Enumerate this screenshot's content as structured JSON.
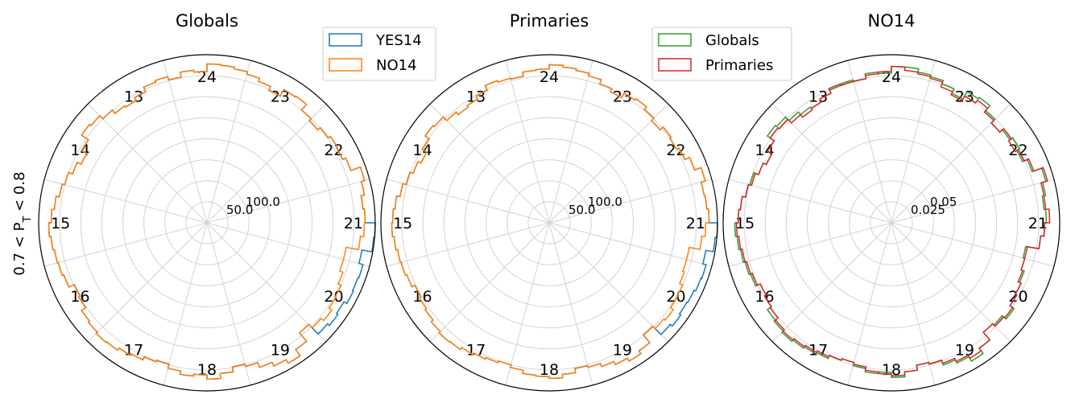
{
  "figure": {
    "ylabel": "0.7 < P_T < 0.8",
    "colors": {
      "YES14": "#1f77b4",
      "NO14": "#ff7f0e",
      "Globals": "#2ca02c",
      "Primaries": "#d62728"
    }
  },
  "chart_data": [
    {
      "type": "polar-step",
      "title": "Globals",
      "sector_labels": [
        "13",
        "24",
        "23",
        "22",
        "21",
        "20",
        "19",
        "18",
        "17",
        "16",
        "15",
        "14"
      ],
      "rticks": [
        "50.0",
        "100.0"
      ],
      "rmax": 200,
      "legend": [
        "YES14",
        "NO14"
      ],
      "bins": 72,
      "series": [
        {
          "name": "YES14",
          "color": "#1f77b4",
          "values": [
            188,
            186,
            190,
            194,
            182,
            178,
            179,
            176,
            172,
            175,
            184,
            183,
            174,
            179,
            183,
            186,
            188,
            189,
            180,
            182,
            176,
            180,
            178,
            172,
            168,
            170,
            175,
            180,
            182,
            172,
            165,
            170,
            175,
            178,
            182,
            185,
            188,
            186,
            184,
            183,
            181,
            174,
            176,
            182,
            184,
            186,
            185,
            182,
            180,
            176,
            174,
            179,
            183,
            181,
            186,
            180,
            174,
            177,
            183,
            188,
            193,
            184,
            171,
            187,
            190,
            188,
            192,
            191,
            192,
            187,
            199,
            203
          ]
        },
        {
          "name": "NO14",
          "color": "#ff7f0e",
          "values": [
            188,
            186,
            190,
            194,
            182,
            178,
            179,
            176,
            172,
            175,
            184,
            183,
            174,
            179,
            183,
            186,
            188,
            189,
            180,
            182,
            176,
            180,
            178,
            172,
            168,
            170,
            175,
            180,
            182,
            172,
            165,
            170,
            175,
            178,
            182,
            185,
            188,
            186,
            184,
            183,
            181,
            174,
            176,
            182,
            184,
            186,
            185,
            182,
            180,
            176,
            174,
            179,
            183,
            181,
            186,
            180,
            174,
            177,
            183,
            188,
            193,
            184,
            171,
            177,
            181,
            177,
            176,
            172,
            168,
            168,
            183,
            187
          ]
        }
      ]
    },
    {
      "type": "polar-step",
      "title": "Primaries",
      "sector_labels": [
        "13",
        "24",
        "23",
        "22",
        "21",
        "20",
        "19",
        "18",
        "17",
        "16",
        "15",
        "14"
      ],
      "rticks": [
        "50.0",
        "100.0"
      ],
      "rmax": 200,
      "legend": [],
      "bins": 72,
      "series": [
        {
          "name": "YES14",
          "color": "#1f77b4",
          "values": [
            190,
            188,
            187,
            192,
            184,
            178,
            175,
            177,
            172,
            176,
            180,
            178,
            172,
            176,
            181,
            184,
            186,
            188,
            183,
            182,
            177,
            178,
            180,
            174,
            170,
            168,
            172,
            178,
            180,
            174,
            168,
            172,
            176,
            180,
            184,
            186,
            187,
            185,
            183,
            182,
            180,
            176,
            178,
            180,
            183,
            185,
            184,
            181,
            179,
            177,
            175,
            178,
            182,
            183,
            185,
            181,
            176,
            178,
            182,
            186,
            190,
            186,
            174,
            188,
            191,
            189,
            190,
            192,
            193,
            189,
            198,
            201
          ]
        },
        {
          "name": "NO14",
          "color": "#ff7f0e",
          "values": [
            190,
            188,
            187,
            192,
            184,
            178,
            175,
            177,
            172,
            176,
            180,
            178,
            172,
            176,
            181,
            184,
            186,
            188,
            183,
            182,
            177,
            178,
            180,
            174,
            170,
            168,
            172,
            178,
            180,
            174,
            168,
            172,
            176,
            180,
            184,
            186,
            187,
            185,
            183,
            182,
            180,
            176,
            178,
            180,
            183,
            185,
            184,
            181,
            179,
            177,
            175,
            178,
            182,
            183,
            185,
            181,
            176,
            178,
            182,
            186,
            190,
            186,
            174,
            178,
            180,
            176,
            175,
            171,
            169,
            169,
            182,
            186
          ]
        }
      ]
    },
    {
      "type": "polar-step",
      "title": "NO14",
      "sector_labels": [
        "13",
        "24",
        "23",
        "22",
        "21",
        "20",
        "19",
        "18",
        "17",
        "16",
        "15",
        "14"
      ],
      "rticks": [
        "0.025",
        "0.05"
      ],
      "rmax": 0.1,
      "legend": [
        "Globals",
        "Primaries"
      ],
      "bins": 72,
      "series": [
        {
          "name": "Globals",
          "color": "#2ca02c",
          "values": [
            0.092,
            0.091,
            0.093,
            0.095,
            0.089,
            0.086,
            0.088,
            0.086,
            0.084,
            0.087,
            0.091,
            0.09,
            0.085,
            0.088,
            0.09,
            0.091,
            0.093,
            0.093,
            0.089,
            0.09,
            0.087,
            0.088,
            0.087,
            0.085,
            0.083,
            0.084,
            0.086,
            0.089,
            0.09,
            0.085,
            0.082,
            0.084,
            0.087,
            0.088,
            0.09,
            0.091,
            0.093,
            0.092,
            0.091,
            0.09,
            0.089,
            0.086,
            0.087,
            0.09,
            0.091,
            0.092,
            0.091,
            0.09,
            0.089,
            0.087,
            0.086,
            0.088,
            0.09,
            0.089,
            0.092,
            0.089,
            0.086,
            0.087,
            0.09,
            0.092,
            0.095,
            0.091,
            0.085,
            0.086,
            0.089,
            0.086,
            0.085,
            0.084,
            0.082,
            0.081,
            0.089,
            0.091
          ]
        },
        {
          "name": "Primaries",
          "color": "#d62728",
          "values": [
            0.094,
            0.092,
            0.092,
            0.096,
            0.09,
            0.087,
            0.085,
            0.087,
            0.084,
            0.086,
            0.089,
            0.087,
            0.084,
            0.086,
            0.089,
            0.09,
            0.091,
            0.093,
            0.09,
            0.089,
            0.087,
            0.087,
            0.088,
            0.085,
            0.083,
            0.082,
            0.084,
            0.087,
            0.088,
            0.085,
            0.082,
            0.084,
            0.086,
            0.088,
            0.09,
            0.091,
            0.092,
            0.091,
            0.09,
            0.089,
            0.088,
            0.086,
            0.087,
            0.088,
            0.09,
            0.091,
            0.09,
            0.089,
            0.088,
            0.087,
            0.086,
            0.087,
            0.089,
            0.09,
            0.091,
            0.089,
            0.086,
            0.087,
            0.089,
            0.091,
            0.093,
            0.091,
            0.085,
            0.087,
            0.088,
            0.086,
            0.085,
            0.083,
            0.082,
            0.082,
            0.089,
            0.091
          ]
        }
      ]
    }
  ]
}
